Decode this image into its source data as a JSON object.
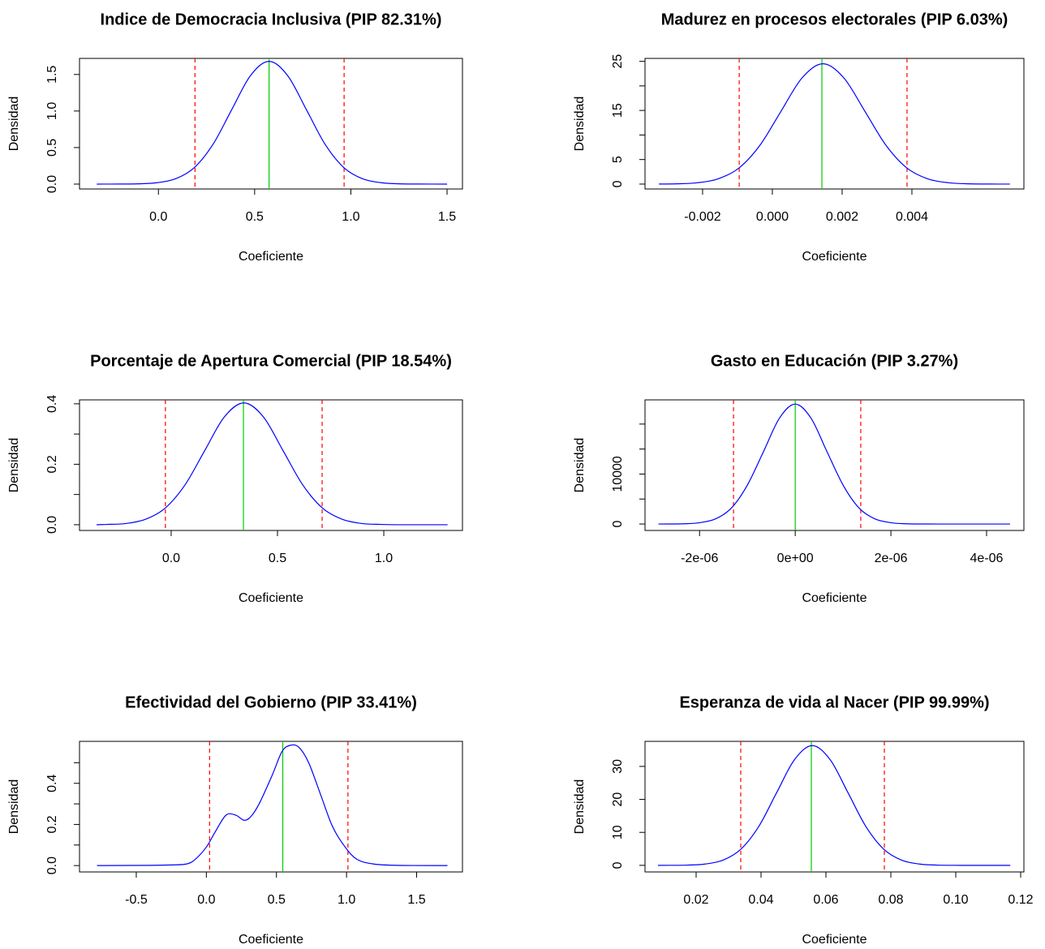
{
  "chart_data": [
    {
      "type": "line",
      "title": "Indice de Democracia Inclusiva (PIP 82.31%)",
      "xlabel": "Coeficiente",
      "ylabel": "Densidad",
      "x": [
        -0.32,
        -0.201,
        -0.104,
        -0.007,
        0.09,
        0.187,
        0.284,
        0.381,
        0.478,
        0.575,
        0.672,
        0.769,
        0.866,
        0.963,
        1.06,
        1.157,
        1.254,
        1.351,
        1.5
      ],
      "values": [
        0,
        0.001,
        0.004,
        0.019,
        0.074,
        0.227,
        0.545,
        1.019,
        1.483,
        1.68,
        1.483,
        1.019,
        0.545,
        0.227,
        0.074,
        0.019,
        0.004,
        0.001,
        0
      ],
      "color": "#0000ff",
      "interval": [
        0.19,
        0.965
      ],
      "interval_color": "#ff0000",
      "mean": 0.575,
      "mean_color": "#00cc00",
      "xlim": [
        -0.41,
        1.58
      ],
      "ylim": [
        -0.067,
        1.72
      ],
      "xticks": [
        {
          "value": 0,
          "label": "0.0"
        },
        0.5,
        {
          "value": 1,
          "label": "1.0"
        },
        1.5
      ],
      "yticks": [
        {
          "value": 0,
          "label": "0.0"
        },
        0.5,
        {
          "value": 1,
          "label": "1.0"
        },
        1.5
      ],
      "yminor_ticks": []
    },
    {
      "type": "line",
      "title": "Madurez en procesos electorales (PIP 6.03%)",
      "xlabel": "Coeficiente",
      "ylabel": "Densidad",
      "x": [
        -0.00325,
        -0.00275,
        -0.00215,
        -0.00155,
        -0.00095,
        -0.00035,
        0.00025,
        0.00085,
        0.00145,
        0.00205,
        0.00265,
        0.00325,
        0.00385,
        0.00445,
        0.00505,
        0.00565,
        0.00625,
        0.00681
      ],
      "values": [
        0.01,
        0.05,
        0.27,
        1.08,
        3.31,
        7.96,
        14.86,
        21.62,
        24.5,
        21.62,
        14.86,
        7.96,
        3.31,
        1.08,
        0.27,
        0.05,
        0.01,
        0
      ],
      "color": "#0000ff",
      "interval": [
        -0.00095,
        0.00386
      ],
      "interval_color": "#ff0000",
      "mean": 0.00142,
      "mean_color": "#00cc00",
      "xlim": [
        -0.00365,
        0.00721
      ],
      "ylim": [
        -1.0,
        25.6
      ],
      "xticks": [
        -0.002,
        {
          "value": 0,
          "label": "0.000"
        },
        0.002,
        0.004
      ],
      "yticks": [
        0,
        5,
        15,
        25
      ],
      "yminor_ticks": [
        10,
        20
      ]
    },
    {
      "type": "line",
      "title": "Porcentaje de Apertura Comercial (PIP 18.54%)",
      "xlabel": "Coeficiente",
      "ylabel": "Densidad",
      "x": [
        -0.351,
        -0.3055,
        -0.213,
        -0.1205,
        -0.028,
        0.0645,
        0.157,
        0.2495,
        0.342,
        0.4345,
        0.527,
        0.6195,
        0.712,
        0.8045,
        0.897,
        0.9895,
        1.082,
        1.3
      ],
      "values": [
        0,
        0.001,
        0.004,
        0.018,
        0.055,
        0.131,
        0.244,
        0.356,
        0.403,
        0.356,
        0.244,
        0.131,
        0.055,
        0.018,
        0.004,
        0.001,
        0,
        0
      ],
      "color": "#0000ff",
      "interval": [
        -0.027,
        0.71
      ],
      "interval_color": "#ff0000",
      "mean": 0.34,
      "mean_color": "#00cc00",
      "xlim": [
        -0.431,
        1.37
      ],
      "ylim": [
        -0.019,
        0.413
      ],
      "xticks": [
        {
          "value": 0,
          "label": "0.0"
        },
        0.5,
        {
          "value": 1,
          "label": "1.0"
        }
      ],
      "yticks": [
        {
          "value": 0,
          "label": "0.0"
        },
        0.2,
        0.4
      ],
      "yminor_ticks": [
        0.1,
        0.3
      ]
    },
    {
      "type": "line",
      "title": "Gasto en Educación (PIP 3.27%)",
      "xlabel": "Coeficiente",
      "ylabel": "Densidad",
      "x": [
        -2.86e-06,
        -2.66e-06,
        -2.33e-06,
        -2e-06,
        -1.66e-06,
        -1.33e-06,
        -1e-06,
        -6.6e-07,
        -3.3e-07,
        0,
        3.3e-07,
        6.6e-07,
        1e-06,
        1.33e-06,
        1.66e-06,
        2e-06,
        2.33e-06,
        2.66e-06,
        3e-06,
        4.49e-06
      ],
      "values": [
        0,
        8,
        53,
        266,
        1054,
        3247,
        7793,
        14556,
        21180,
        24000,
        21180,
        14556,
        7793,
        3247,
        1054,
        266,
        53,
        8,
        1,
        0
      ],
      "color": "#0000ff",
      "interval": [
        -1.29e-06,
        1.37e-06
      ],
      "interval_color": "#ff0000",
      "mean": 0,
      "mean_color": "#00cc00",
      "xlim": [
        -3.14e-06,
        4.78e-06
      ],
      "ylim": [
        -1290,
        24840
      ],
      "xticks": [
        {
          "value": -2e-06,
          "label": "-2e-06"
        },
        {
          "value": 0,
          "label": "0e+00"
        },
        {
          "value": 2e-06,
          "label": "2e-06"
        },
        {
          "value": 4e-06,
          "label": "4e-06"
        }
      ],
      "yticks": [
        0,
        10000
      ],
      "yminor_ticks": [
        5000,
        15000,
        20000
      ]
    },
    {
      "type": "line",
      "title": "Efectividad del Gobierno (PIP 33.41%)",
      "xlabel": "Coeficiente",
      "ylabel": "Densidad",
      "x": [
        -0.78,
        -0.4,
        -0.25,
        -0.14,
        -0.08,
        0.0,
        0.06,
        0.14,
        0.21,
        0.27,
        0.32,
        0.38,
        0.47,
        0.54,
        0.6,
        0.66,
        0.73,
        0.815,
        0.9,
        0.99,
        1.075,
        1.19,
        1.36,
        1.72
      ],
      "values": [
        0,
        0.001,
        0.003,
        0.008,
        0.03,
        0.09,
        0.16,
        0.245,
        0.245,
        0.22,
        0.24,
        0.305,
        0.44,
        0.555,
        0.585,
        0.575,
        0.5,
        0.345,
        0.19,
        0.09,
        0.03,
        0.008,
        0.001,
        0
      ],
      "color": "#0000ff",
      "interval": [
        0.023,
        1.01
      ],
      "interval_color": "#ff0000",
      "mean": 0.545,
      "mean_color": "#00cc00",
      "xlim": [
        -0.905,
        1.827
      ],
      "ylim": [
        -0.031,
        0.604
      ],
      "xticks": [
        -0.5,
        {
          "value": 0,
          "label": "0.0"
        },
        0.5,
        {
          "value": 1,
          "label": "1.0"
        },
        1.5
      ],
      "yticks": [
        {
          "value": 0,
          "label": "0.0"
        },
        0.2,
        0.4
      ],
      "yminor_ticks": [
        0.1,
        0.3,
        0.5
      ]
    },
    {
      "type": "line",
      "title": "Esperanza de vida al Nacer (PIP 99.99%)",
      "xlabel": "Coeficiente",
      "ylabel": "Densidad",
      "x": [
        0.00825,
        0.0118,
        0.0173,
        0.0228,
        0.0283,
        0.0338,
        0.0393,
        0.0448,
        0.0503,
        0.0558,
        0.0613,
        0.0668,
        0.0723,
        0.0778,
        0.0833,
        0.0888,
        0.0943,
        0.0998,
        0.1053,
        0.1168
      ],
      "values": [
        0,
        0.01,
        0.08,
        0.4,
        1.59,
        4.91,
        11.79,
        22.02,
        32.03,
        36.3,
        32.03,
        22.02,
        11.79,
        4.91,
        1.59,
        0.4,
        0.08,
        0.01,
        0,
        0
      ],
      "color": "#0000ff",
      "interval": [
        0.03375,
        0.078
      ],
      "interval_color": "#ff0000",
      "mean": 0.0555,
      "mean_color": "#00cc00",
      "xlim": [
        0.00425,
        0.121
      ],
      "ylim": [
        -2.0,
        37.6
      ],
      "xticks": [
        0.02,
        0.04,
        0.06,
        0.08,
        {
          "value": 0.1,
          "label": "0.10"
        },
        0.12
      ],
      "yticks": [
        0,
        10,
        20,
        30
      ],
      "yminor_ticks": []
    }
  ]
}
